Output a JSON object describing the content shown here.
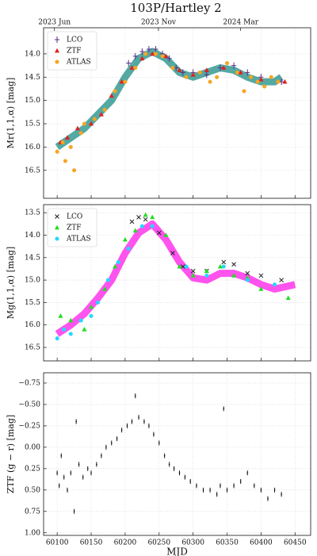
{
  "chart_data": [
    {
      "type": "scatter",
      "title": "103P/Hartley 2",
      "y_label": "Mr(1,1,α) [mag]",
      "xlim": [
        60080,
        60473
      ],
      "ylim": [
        17.1,
        13.44
      ],
      "xticks": [
        60100,
        60150,
        60200,
        60250,
        60300,
        60350,
        60400,
        60450
      ],
      "show_xtick_labels": false,
      "x2ticks": [
        {
          "value": 60096,
          "label": "2023 Jun"
        },
        {
          "value": 60249,
          "label": "2023 Nov"
        },
        {
          "value": 60370,
          "label": "2024 Mar"
        }
      ],
      "yticks": [
        {
          "value": 14,
          "label": "14.0"
        },
        14.5,
        {
          "value": 15,
          "label": "15.0"
        },
        15.5,
        {
          "value": 16,
          "label": "16.0"
        },
        16.5
      ],
      "grid": true,
      "legend": "upper left",
      "series": [
        {
          "marker": "band",
          "color": "#1b8c84",
          "x": [
            60100,
            60120,
            60140,
            60160,
            60180,
            60200,
            60220,
            60240,
            60260,
            60280,
            60300,
            60320,
            60340,
            60360,
            60380,
            60400,
            60420,
            60430
          ],
          "values": [
            16.0,
            15.8,
            15.6,
            15.3,
            15.0,
            14.5,
            14.1,
            13.95,
            14.1,
            14.4,
            14.5,
            14.4,
            14.3,
            14.35,
            14.5,
            14.6,
            14.6,
            14.5
          ]
        },
        {
          "name": "LCO",
          "marker": "plus",
          "color": "#5b2a86",
          "x": [
            60205,
            60215,
            60225,
            60235,
            60245,
            60255,
            60265,
            60275,
            60285,
            60300,
            60320,
            60340,
            60360,
            60380,
            60400,
            60430
          ],
          "values": [
            14.2,
            14.05,
            13.95,
            13.9,
            13.9,
            14.0,
            14.1,
            14.3,
            14.4,
            14.4,
            14.45,
            14.3,
            14.25,
            14.4,
            14.5,
            14.6
          ]
        },
        {
          "name": "ZTF",
          "marker": "triangle",
          "color": "#e02020",
          "x": [
            60105,
            60115,
            60130,
            60150,
            60165,
            60180,
            60195,
            60210,
            60225,
            60240,
            60260,
            60280,
            60300,
            60320,
            60345,
            60370,
            60400,
            60435
          ],
          "values": [
            15.9,
            15.8,
            15.6,
            15.5,
            15.3,
            14.9,
            14.6,
            14.3,
            14.1,
            14.0,
            14.05,
            14.35,
            14.45,
            14.35,
            14.3,
            14.4,
            14.55,
            14.6
          ]
        },
        {
          "name": "ATLAS",
          "marker": "circle",
          "color": "#f5a623",
          "x": [
            60100,
            60108,
            60112,
            60120,
            60125,
            60135,
            60140,
            60155,
            60170,
            60185,
            60200,
            60215,
            60230,
            60245,
            60255,
            60270,
            60290,
            60310,
            60325,
            60335,
            60350,
            60365,
            60375,
            60385,
            60395,
            60405,
            60415,
            60425
          ],
          "values": [
            16.1,
            15.9,
            16.3,
            16.0,
            16.5,
            15.7,
            15.5,
            15.4,
            15.2,
            14.8,
            14.6,
            14.3,
            14.0,
            14.0,
            14.05,
            14.3,
            14.5,
            14.4,
            14.6,
            14.5,
            14.2,
            14.4,
            14.8,
            14.5,
            14.6,
            14.7,
            14.5,
            14.6
          ]
        }
      ]
    },
    {
      "type": "scatter",
      "y_label": "Mg(1,1,α) [mag]",
      "xlim": [
        60080,
        60473
      ],
      "ylim": [
        16.8,
        13.32
      ],
      "xticks": [
        60100,
        60150,
        60200,
        60250,
        60300,
        60350,
        60400,
        60450
      ],
      "show_xtick_labels": false,
      "yticks": [
        13.5,
        {
          "value": 14,
          "label": "14.0"
        },
        14.5,
        {
          "value": 15,
          "label": "15.0"
        },
        15.5,
        {
          "value": 16,
          "label": "16.0"
        },
        16.5
      ],
      "grid": true,
      "legend": "upper left",
      "series": [
        {
          "marker": "band",
          "color": "#ff1ae8",
          "x": [
            60100,
            60120,
            60140,
            60160,
            60180,
            60200,
            60220,
            60240,
            60260,
            60280,
            60300,
            60320,
            60340,
            60360,
            60380,
            60400,
            60420,
            60450
          ],
          "values": [
            16.2,
            16.0,
            15.75,
            15.4,
            15.0,
            14.4,
            13.95,
            13.75,
            14.1,
            14.6,
            14.95,
            15.0,
            14.85,
            14.85,
            14.95,
            15.1,
            15.2,
            15.1
          ]
        },
        {
          "name": "LCO",
          "marker": "x",
          "color": "#222222",
          "x": [
            60210,
            60220,
            60230,
            60250,
            60270,
            60285,
            60300,
            60320,
            60345,
            60360,
            60380,
            60400,
            60430
          ],
          "values": [
            13.7,
            13.6,
            13.65,
            13.95,
            14.4,
            14.7,
            14.8,
            14.8,
            14.6,
            14.65,
            14.85,
            14.9,
            15.0
          ]
        },
        {
          "name": "ZTF",
          "marker": "triangle",
          "color": "#22dd22",
          "x": [
            60105,
            60120,
            60140,
            60150,
            60170,
            60185,
            60200,
            60215,
            60230,
            60240,
            60260,
            60280,
            60300,
            60320,
            60340,
            60360,
            60380,
            60400,
            60440
          ],
          "values": [
            15.8,
            15.9,
            16.1,
            15.6,
            15.2,
            14.7,
            14.1,
            13.9,
            13.55,
            13.6,
            14.0,
            14.7,
            14.9,
            14.8,
            14.7,
            14.9,
            14.95,
            15.2,
            15.4
          ]
        },
        {
          "name": "ATLAS",
          "marker": "circle",
          "color": "#22d8ff",
          "x": [
            60100,
            60110,
            60120,
            60135,
            60150,
            60160,
            60175,
            60190,
            60205,
            60225,
            60240,
            60290,
            60320,
            60345,
            60380,
            60420
          ],
          "values": [
            16.3,
            16.1,
            16.2,
            15.9,
            15.8,
            15.5,
            15.0,
            14.6,
            14.3,
            13.8,
            13.8,
            14.7,
            14.9,
            14.7,
            15.0,
            15.1
          ]
        }
      ]
    },
    {
      "type": "scatter",
      "y_label": "ZTF (g − r) [mag]",
      "x_label": "MJD",
      "xlim": [
        60080,
        60473
      ],
      "ylim": [
        1.03,
        -0.87
      ],
      "xticks": [
        60100,
        60150,
        60200,
        60250,
        60300,
        60350,
        60400,
        60450
      ],
      "show_xtick_labels": true,
      "yticks": [
        {
          "value": -0.75,
          "label": "−0.75"
        },
        {
          "value": -0.5,
          "label": "−0.50"
        },
        {
          "value": -0.25,
          "label": "−0.25"
        },
        {
          "value": 0,
          "label": "0.00"
        },
        {
          "value": 0.25,
          "label": "0.25"
        },
        {
          "value": 0.5,
          "label": "0.50"
        },
        {
          "value": 0.75,
          "label": "0.75"
        },
        {
          "value": 1,
          "label": "1.00"
        }
      ],
      "grid": true,
      "series": [
        {
          "marker": "dot",
          "color": "#111111",
          "x": [
            60100,
            60103,
            60106,
            60110,
            60115,
            60120,
            60125,
            60128,
            60132,
            60138,
            60145,
            60150,
            60158,
            60165,
            60172,
            60180,
            60188,
            60195,
            60203,
            60210,
            60215,
            60220,
            60228,
            60235,
            60242,
            60250,
            60258,
            60265,
            60272,
            60280,
            60288,
            60296,
            60305,
            60315,
            60325,
            60335,
            60340,
            60345,
            60350,
            60360,
            60370,
            60380,
            60390,
            60400,
            60410,
            60420,
            60430
          ],
          "values": [
            0.3,
            0.45,
            0.1,
            0.35,
            0.5,
            0.3,
            0.75,
            -0.3,
            0.2,
            0.35,
            0.25,
            0.3,
            0.2,
            0.1,
            0.0,
            -0.05,
            -0.1,
            -0.2,
            -0.25,
            -0.3,
            -0.6,
            -0.35,
            -0.3,
            -0.25,
            -0.15,
            -0.05,
            0.1,
            0.2,
            0.25,
            0.3,
            0.35,
            0.4,
            0.45,
            0.5,
            0.5,
            0.55,
            0.45,
            -0.45,
            0.5,
            0.45,
            0.4,
            0.3,
            0.45,
            0.5,
            0.6,
            0.5,
            0.55
          ]
        }
      ]
    }
  ]
}
